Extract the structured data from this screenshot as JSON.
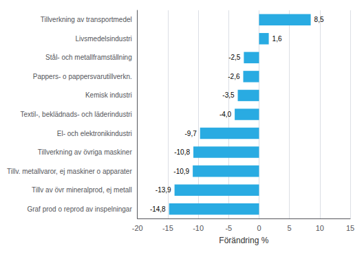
{
  "chart_data": {
    "type": "bar",
    "orientation": "horizontal",
    "categories": [
      "Graf prod o reprod av inspelningar",
      "Tillv av övr mineralprod, ej metall",
      "Tillv. metallvaror, ej maskiner o apparater",
      "Tillverkning av övriga maskiner",
      "El- och elektronikindustri",
      "Textil-, beklädnads- och läderindustri",
      "Kemisk industri",
      "Pappers- o pappersvarutillverkn.",
      "Stål- och metallframställning",
      "Livsmedelsindustri",
      "Tillverkning av transportmedel"
    ],
    "values": [
      -14.8,
      -13.9,
      -10.9,
      -10.8,
      -9.7,
      -4.0,
      -3.5,
      -2.6,
      -2.5,
      1.6,
      8.5
    ],
    "value_labels": [
      "-14,8",
      "-13,9",
      "-10,9",
      "-10,8",
      "-9,7",
      "-4,0",
      "-3,5",
      "-2,6",
      "-2,5",
      "1,6",
      "8,5"
    ],
    "color": "#29abe2",
    "xlabel": "Förändring %",
    "xlim": [
      -20,
      15
    ],
    "xticks": [
      -20,
      -15,
      -10,
      -5,
      0,
      5,
      10,
      15
    ],
    "grid": true,
    "data_labels": true
  }
}
